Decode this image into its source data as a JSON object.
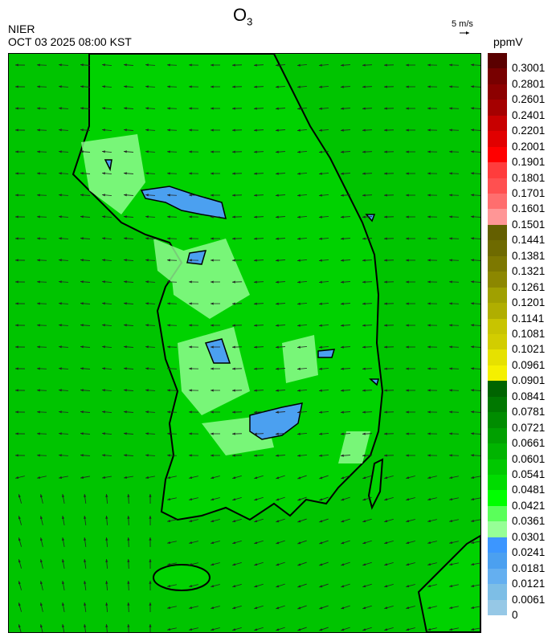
{
  "header": {
    "title_main": "O",
    "title_sub": "3",
    "organization": "NIER",
    "timestamp": "OCT 03 2025 08:00 KST",
    "wind_scale": "5 m/s",
    "unit": "ppmV"
  },
  "legend": {
    "labels": [
      "0.3001",
      "0.2801",
      "0.2601",
      "0.2401",
      "0.2201",
      "0.2001",
      "0.1901",
      "0.1801",
      "0.1701",
      "0.1601",
      "0.1501",
      "0.1441",
      "0.1381",
      "0.1321",
      "0.1261",
      "0.1201",
      "0.1141",
      "0.1081",
      "0.1021",
      "0.0961",
      "0.0901",
      "0.0841",
      "0.0781",
      "0.0721",
      "0.0661",
      "0.0601",
      "0.0541",
      "0.0481",
      "0.0421",
      "0.0361",
      "0.0301",
      "0.0241",
      "0.0181",
      "0.0121",
      "0.0061",
      "0"
    ],
    "colors": [
      "#5a0000",
      "#780000",
      "#8c0000",
      "#a50000",
      "#c80000",
      "#e10000",
      "#ff0000",
      "#ff3c3c",
      "#ff5050",
      "#ff6e6e",
      "#ff9696",
      "#645f00",
      "#6e6a00",
      "#7d7800",
      "#8c8700",
      "#a0a000",
      "#b0ae00",
      "#c8c400",
      "#d2cd00",
      "#e6e100",
      "#f5f000",
      "#006400",
      "#007800",
      "#008c00",
      "#00a000",
      "#00b400",
      "#00c800",
      "#00dc00",
      "#00ff00",
      "#5aff5a",
      "#96ff96",
      "#3c96ff",
      "#4ba0f0",
      "#64aff0",
      "#7dbee6",
      "#96c8e6"
    ]
  },
  "map": {
    "base_color": "#00d200",
    "sea_color": "#00c400",
    "low_color": "#96ff96",
    "lowest_color": "#4ba0f0"
  }
}
